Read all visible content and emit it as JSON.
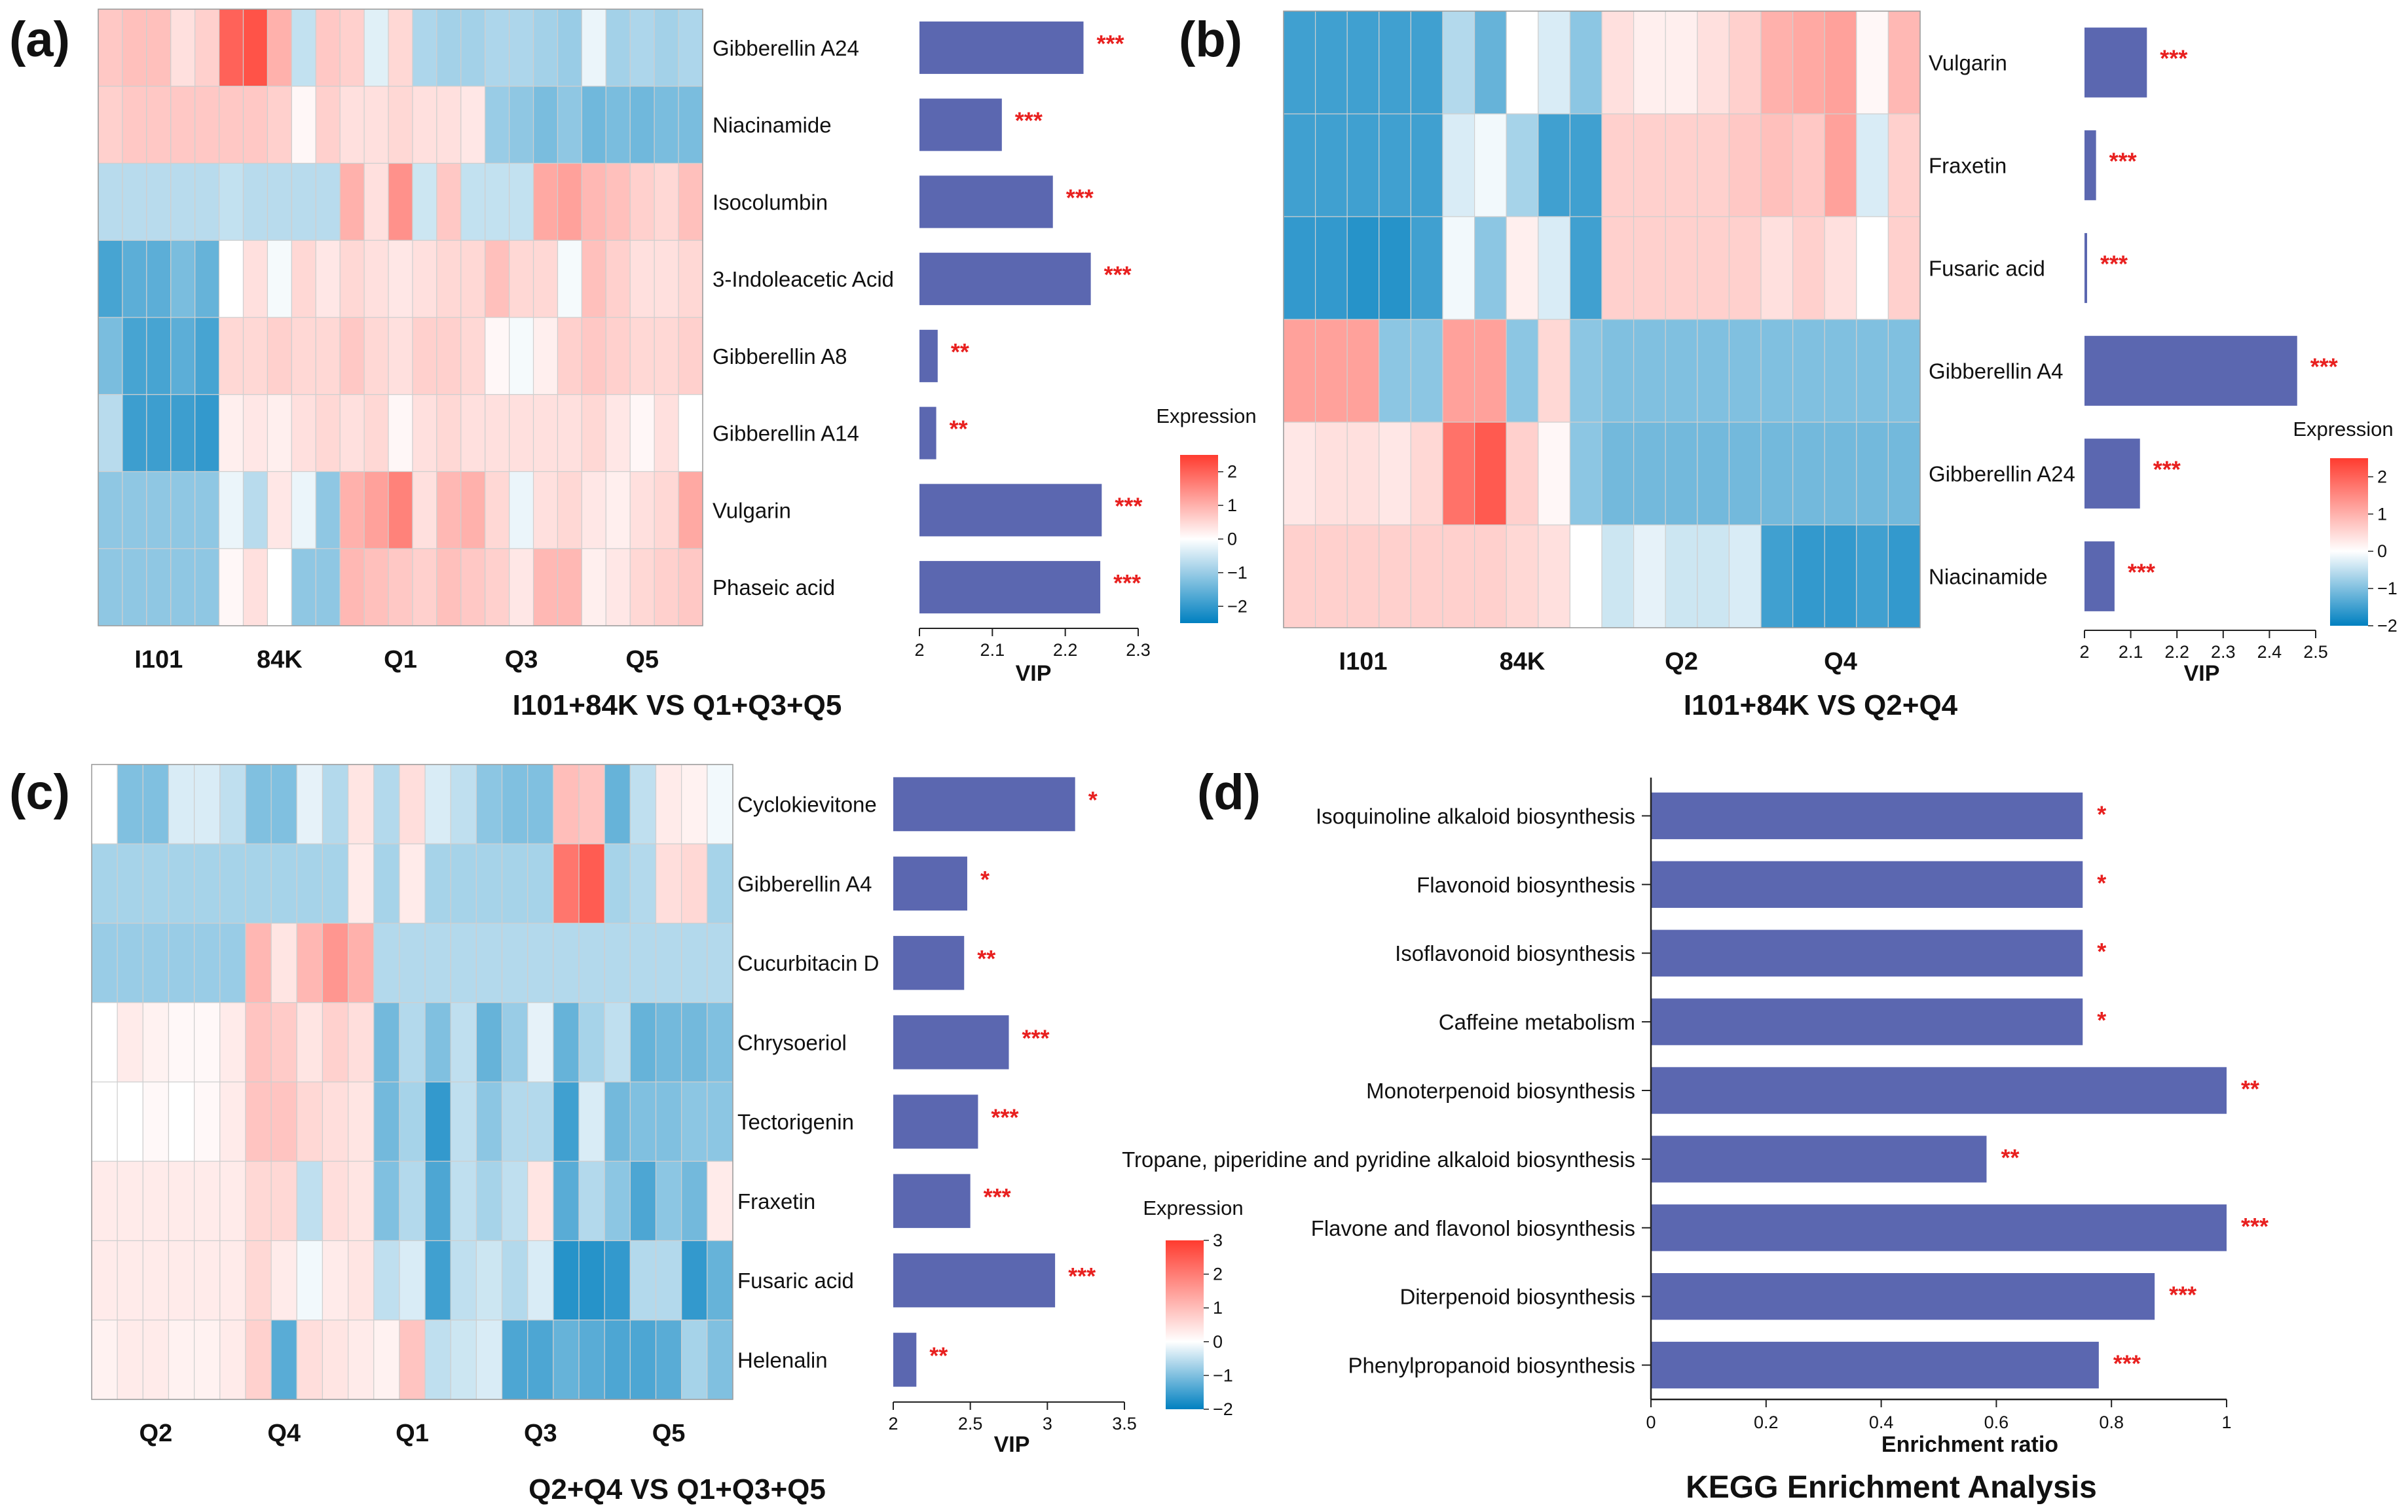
{
  "figure": {
    "panels": [
      "(a)",
      "(b)",
      "(c)",
      "(d)"
    ]
  },
  "colors": {
    "bar": "#5b67b0",
    "star": "#e8201f",
    "scale_low": "#0080c0",
    "scale_mid": "#ffffff",
    "scale_high": "#ff3b2f",
    "text": "#111111"
  },
  "chart_data": [
    {
      "panel": "(a)",
      "type": "heatmap",
      "title": "I101+84K VS Q1+Q3+Q5",
      "group_labels": [
        "I101",
        "84K",
        "Q1",
        "Q3",
        "Q5"
      ],
      "columns_per_group": 5,
      "rows": [
        "Gibberellin A24",
        "Niacinamide",
        "Isocolumbin",
        "3-Indoleacetic Acid",
        "Gibberellin A8",
        "Gibberellin A14",
        "Vulgarin",
        "Phaseic acid"
      ],
      "values": [
        [
          0.7,
          0.8,
          0.8,
          0.4,
          0.6,
          2.0,
          2.2,
          1.0,
          -0.6,
          0.7,
          0.6,
          -0.3,
          0.5,
          -0.8,
          -0.9,
          -0.9,
          -0.8,
          -0.8,
          -0.9,
          -1.0,
          -0.2,
          -0.9,
          -0.8,
          -0.9,
          -0.8
        ],
        [
          0.6,
          0.7,
          0.7,
          0.7,
          0.7,
          0.7,
          0.7,
          0.6,
          0.1,
          0.6,
          0.4,
          0.4,
          0.5,
          0.4,
          0.4,
          0.3,
          -1.0,
          -1.1,
          -1.3,
          -1.1,
          -1.4,
          -1.3,
          -1.4,
          -1.3,
          -1.3
        ],
        [
          -0.7,
          -0.7,
          -0.7,
          -0.7,
          -0.7,
          -0.6,
          -0.7,
          -0.7,
          -0.7,
          -0.7,
          1.0,
          0.4,
          1.4,
          -0.5,
          0.7,
          -0.6,
          -0.6,
          -0.6,
          1.1,
          1.2,
          0.9,
          0.8,
          0.6,
          0.5,
          0.8
        ],
        [
          -1.8,
          -1.6,
          -1.6,
          -1.3,
          -1.5,
          0.0,
          0.4,
          -0.1,
          0.5,
          0.3,
          0.5,
          0.4,
          0.3,
          0.4,
          0.5,
          0.5,
          0.8,
          0.5,
          0.5,
          -0.1,
          0.8,
          0.6,
          0.4,
          0.4,
          0.5
        ],
        [
          -1.3,
          -1.8,
          -1.8,
          -1.6,
          -1.8,
          0.5,
          0.5,
          0.6,
          0.5,
          0.5,
          0.7,
          0.5,
          0.4,
          0.6,
          0.6,
          0.5,
          0.1,
          -0.1,
          0.2,
          0.6,
          0.7,
          0.6,
          0.5,
          0.5,
          0.6
        ],
        [
          -0.7,
          -1.9,
          -1.9,
          -1.9,
          -2.0,
          0.2,
          0.3,
          0.2,
          0.4,
          0.5,
          0.4,
          0.5,
          0.1,
          0.4,
          0.5,
          0.4,
          0.4,
          0.4,
          0.4,
          0.4,
          0.5,
          0.3,
          0.1,
          0.4,
          0.0
        ],
        [
          -1.1,
          -1.1,
          -1.1,
          -1.1,
          -1.1,
          -0.2,
          -0.7,
          0.3,
          -0.2,
          -1.1,
          1.0,
          1.2,
          1.6,
          0.4,
          0.9,
          1.0,
          0.5,
          -0.2,
          0.4,
          0.5,
          0.3,
          0.2,
          0.4,
          0.5,
          1.1
        ],
        [
          -1.1,
          -1.1,
          -1.1,
          -1.1,
          -1.1,
          0.1,
          0.4,
          0.0,
          -1.1,
          -1.1,
          0.9,
          0.8,
          0.7,
          0.6,
          0.8,
          0.7,
          0.6,
          0.3,
          0.9,
          0.9,
          0.2,
          0.3,
          0.5,
          0.6,
          0.7
        ]
      ],
      "bars": {
        "labels": [
          "Gibberellin A24",
          "Niacinamide",
          "Isocolumbin",
          "3-Indoleacetic Acid",
          "Gibberellin A8",
          "Gibberellin A14",
          "Vulgarin",
          "Phaseic acid"
        ],
        "values": [
          2.225,
          2.113,
          2.183,
          2.235,
          2.025,
          2.023,
          2.25,
          2.248
        ],
        "significance": [
          "***",
          "***",
          "***",
          "***",
          "**",
          "**",
          "***",
          "***"
        ],
        "xlim": [
          2,
          2.3
        ],
        "ticks": [
          "2",
          "2.1",
          "2.2",
          "2.3"
        ],
        "tick_values": [
          2,
          2.1,
          2.2,
          2.3
        ],
        "xlabel": "VIP"
      },
      "legend": {
        "title": "Expression",
        "range": [
          -2.5,
          2.5
        ],
        "ticks": [
          "2",
          "1",
          "0",
          "−1",
          "−2"
        ],
        "tick_values": [
          2,
          1,
          0,
          -1,
          -2
        ]
      }
    },
    {
      "panel": "(b)",
      "type": "heatmap",
      "title": "I101+84K VS Q2+Q4",
      "group_labels": [
        "I101",
        "84K",
        "Q2",
        "Q4"
      ],
      "columns_per_group": 5,
      "rows": [
        "Vulgarin",
        "Fraxetin",
        "Fusaric acid",
        "Gibberellin A4",
        "Gibberellin A24",
        "Niacinamide"
      ],
      "values": [
        [
          -1.5,
          -1.5,
          -1.5,
          -1.5,
          -1.5,
          -0.6,
          -1.2,
          0.0,
          -0.3,
          -0.9,
          0.4,
          0.2,
          0.2,
          0.4,
          0.6,
          1.0,
          1.1,
          1.2,
          0.1,
          0.9
        ],
        [
          -1.5,
          -1.5,
          -1.5,
          -1.5,
          -1.5,
          -0.3,
          -0.1,
          -0.7,
          -1.5,
          -1.5,
          0.6,
          0.6,
          0.6,
          0.6,
          0.7,
          0.8,
          0.7,
          1.2,
          -0.3,
          0.6
        ],
        [
          -1.6,
          -1.6,
          -1.7,
          -1.7,
          -1.5,
          -0.1,
          -0.9,
          0.2,
          -0.3,
          -1.5,
          0.6,
          0.6,
          0.6,
          0.6,
          0.6,
          0.4,
          0.6,
          0.4,
          0.0,
          0.6
        ],
        [
          1.2,
          1.2,
          1.2,
          -0.9,
          -0.9,
          1.2,
          1.2,
          -0.9,
          0.5,
          -0.9,
          -1.0,
          -1.0,
          -1.0,
          -1.0,
          -1.0,
          -1.0,
          -1.0,
          -1.0,
          -1.0,
          -1.0
        ],
        [
          0.3,
          0.4,
          0.4,
          0.3,
          0.5,
          1.8,
          2.1,
          0.6,
          0.1,
          -0.9,
          -1.1,
          -1.1,
          -1.1,
          -1.1,
          -1.1,
          -1.1,
          -1.1,
          -1.1,
          -1.1,
          -1.1
        ],
        [
          0.6,
          0.6,
          0.6,
          0.6,
          0.6,
          0.6,
          0.6,
          0.5,
          0.4,
          0.0,
          -0.4,
          -0.2,
          -0.4,
          -0.4,
          -0.3,
          -1.5,
          -1.6,
          -1.6,
          -1.5,
          -1.6
        ]
      ],
      "bars": {
        "labels": [
          "Vulgarin",
          "Fraxetin",
          "Fusaric acid",
          "Gibberellin A4",
          "Gibberellin A24",
          "Niacinamide"
        ],
        "values": [
          2.135,
          2.025,
          2.003,
          2.46,
          2.12,
          2.065
        ],
        "significance": [
          "***",
          "***",
          "***",
          "***",
          "***",
          "***"
        ],
        "xlim": [
          2,
          2.5
        ],
        "ticks": [
          "2",
          "2.1",
          "2.2",
          "2.3",
          "2.4",
          "2.5"
        ],
        "tick_values": [
          2,
          2.1,
          2.2,
          2.3,
          2.4,
          2.5
        ],
        "xlabel": "VIP"
      },
      "legend": {
        "title": "Expression",
        "range": [
          -2,
          2.5
        ],
        "ticks": [
          "2",
          "1",
          "0",
          "−1",
          "−2"
        ],
        "tick_values": [
          2,
          1,
          0,
          -1,
          -2
        ]
      }
    },
    {
      "panel": "(c)",
      "type": "heatmap",
      "title": "Q2+Q4 VS Q1+Q3+Q5",
      "group_labels": [
        "Q2",
        "Q4",
        "Q1",
        "Q3",
        "Q5"
      ],
      "columns_per_group": 5,
      "rows": [
        "Cyclokievitone",
        "Gibberellin A4",
        "Cucurbitacin D",
        "Chrysoeriol",
        "Tectorigenin",
        "Fraxetin",
        "Fusaric acid",
        "Helenalin"
      ],
      "values": [
        [
          0.0,
          -1.0,
          -1.0,
          -0.3,
          -0.3,
          -0.5,
          -1.0,
          -1.0,
          -0.2,
          -0.6,
          0.4,
          -0.6,
          0.5,
          -0.3,
          -0.5,
          -0.9,
          -1.0,
          -1.0,
          1.0,
          0.9,
          -1.2,
          -0.5,
          0.3,
          0.2,
          -0.1
        ],
        [
          -0.7,
          -0.7,
          -0.7,
          -0.7,
          -0.7,
          -0.7,
          -0.7,
          -0.7,
          -0.7,
          -0.7,
          0.3,
          -0.7,
          0.3,
          -0.7,
          -0.7,
          -0.7,
          -0.7,
          -0.7,
          2.1,
          2.5,
          -0.7,
          -0.6,
          0.5,
          0.6,
          -0.7
        ],
        [
          -0.8,
          -0.8,
          -0.8,
          -0.8,
          -0.8,
          -0.8,
          1.1,
          0.4,
          1.1,
          1.6,
          1.2,
          -0.6,
          -0.6,
          -0.6,
          -0.6,
          -0.6,
          -0.6,
          -0.6,
          -0.6,
          -0.6,
          -0.6,
          -0.6,
          -0.6,
          -0.6,
          -0.6
        ],
        [
          0.0,
          0.3,
          0.2,
          0.1,
          0.1,
          0.3,
          0.9,
          0.8,
          0.4,
          0.7,
          0.5,
          -1.1,
          -0.6,
          -1.0,
          -0.5,
          -1.2,
          -0.8,
          -0.2,
          -1.2,
          -0.7,
          -0.5,
          -1.2,
          -1.1,
          -1.1,
          -1.0
        ],
        [
          0.0,
          0.0,
          0.1,
          0.0,
          0.1,
          0.3,
          0.9,
          0.9,
          0.6,
          0.5,
          0.4,
          -1.1,
          -0.7,
          -1.6,
          -0.5,
          -0.9,
          -0.6,
          -0.6,
          -1.5,
          -0.3,
          -1.1,
          -1.0,
          -1.0,
          -0.9,
          -0.9
        ],
        [
          0.3,
          0.3,
          0.3,
          0.3,
          0.3,
          0.3,
          0.6,
          0.6,
          -0.5,
          0.5,
          0.4,
          -1.0,
          -0.6,
          -1.4,
          -0.5,
          -0.7,
          -0.5,
          0.4,
          -1.3,
          -0.6,
          -0.9,
          -1.4,
          -0.9,
          -1.1,
          0.3
        ],
        [
          0.3,
          0.3,
          0.3,
          0.3,
          0.3,
          0.3,
          0.6,
          0.3,
          -0.1,
          0.3,
          0.4,
          -0.5,
          -0.3,
          -1.5,
          -0.5,
          -0.4,
          -0.6,
          -0.3,
          -1.7,
          -1.7,
          -1.6,
          -0.6,
          -0.6,
          -1.6,
          -1.2
        ],
        [
          0.2,
          0.3,
          0.3,
          0.2,
          0.2,
          0.3,
          0.7,
          -1.3,
          0.5,
          0.4,
          0.3,
          0.2,
          0.9,
          -0.5,
          -0.4,
          -0.3,
          -1.4,
          -1.4,
          -1.2,
          -1.3,
          -1.4,
          -1.4,
          -1.3,
          -0.7,
          -1.0
        ]
      ],
      "bars": {
        "labels": [
          "Cyclokievitone",
          "Gibberellin A4",
          "Cucurbitacin D",
          "Chrysoeriol",
          "Tectorigenin",
          "Fraxetin",
          "Fusaric acid",
          "Helenalin"
        ],
        "values": [
          3.18,
          2.48,
          2.46,
          2.75,
          2.55,
          2.5,
          3.05,
          2.15
        ],
        "significance": [
          "*",
          "*",
          "**",
          "***",
          "***",
          "***",
          "***",
          "**"
        ],
        "xlim": [
          2,
          3.5
        ],
        "ticks": [
          "2",
          "2.5",
          "3",
          "3.5"
        ],
        "tick_values": [
          2,
          2.5,
          3,
          3.5
        ],
        "xlabel": "VIP"
      },
      "legend": {
        "title": "Expression",
        "range": [
          -2,
          3
        ],
        "ticks": [
          "3",
          "2",
          "1",
          "0",
          "−1",
          "−2"
        ],
        "tick_values": [
          3,
          2,
          1,
          0,
          -1,
          -2
        ]
      }
    },
    {
      "panel": "(d)",
      "type": "bar",
      "orientation": "horizontal",
      "title": "KEGG Enrichment Analysis",
      "xlabel": "Enrichment ratio",
      "xlim": [
        0,
        1
      ],
      "ticks": [
        "0",
        "0.2",
        "0.4",
        "0.6",
        "0.8",
        "1"
      ],
      "tick_values": [
        0,
        0.2,
        0.4,
        0.6,
        0.8,
        1
      ],
      "categories": [
        "Isoquinoline alkaloid biosynthesis",
        "Flavonoid biosynthesis",
        "Isoflavonoid biosynthesis",
        "Caffeine metabolism",
        "Monoterpenoid biosynthesis",
        "Tropane, piperidine and pyridine alkaloid biosynthesis",
        "Flavone and flavonol biosynthesis",
        "Diterpenoid biosynthesis",
        "Phenylpropanoid biosynthesis"
      ],
      "values": [
        0.75,
        0.75,
        0.75,
        0.75,
        1.0,
        0.583,
        1.0,
        0.875,
        0.778
      ],
      "significance": [
        "*",
        "*",
        "*",
        "*",
        "**",
        "**",
        "***",
        "***",
        "***"
      ]
    }
  ]
}
